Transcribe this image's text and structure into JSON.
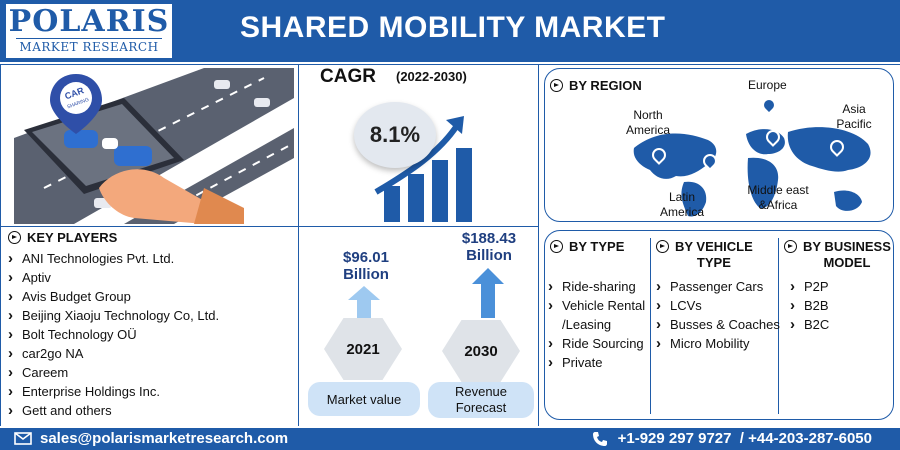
{
  "logo": {
    "main": "POLARIS",
    "sub": "MARKET RESEARCH"
  },
  "title": "SHARED MOBILITY MARKET",
  "hero": {
    "pin_text": "CAR SHARING"
  },
  "cagr": {
    "label": "CAGR",
    "period": "(2022-2030)",
    "value": "8.1%"
  },
  "key_players": {
    "heading": "KEY PLAYERS",
    "items": [
      "ANI Technologies Pvt. Ltd.",
      "Aptiv",
      "Avis Budget Group",
      "Beijing Xiaoju Technology Co, Ltd.",
      "Bolt Technology OÜ",
      "car2go NA",
      "Careem",
      "Enterprise Holdings Inc.",
      "Gett and others"
    ]
  },
  "market": {
    "y2021": {
      "value": "$96.01",
      "unit": "Billion",
      "year": "2021",
      "caption": "Market value"
    },
    "y2030": {
      "value": "$188.43",
      "unit": "Billion",
      "year": "2030",
      "caption1": "Revenue",
      "caption2": "Forecast"
    }
  },
  "region": {
    "heading": "BY REGION",
    "labels": {
      "north_america_1": "North",
      "north_america_2": "America",
      "europe": "Europe",
      "asia_1": "Asia",
      "asia_2": "Pacific",
      "latin_1": "Latin",
      "latin_2": "America",
      "mea_1": "Middle east",
      "mea_2": "&Africa"
    }
  },
  "by_type": {
    "heading": "BY TYPE",
    "items": [
      "Ride-sharing",
      "Vehicle Rental",
      "/Leasing",
      "Ride Sourcing",
      "Private"
    ]
  },
  "by_vehicle": {
    "heading1": "BY VEHICLE",
    "heading2": "TYPE",
    "items": [
      "Passenger Cars",
      "LCVs",
      "Busses & Coaches",
      "Micro Mobility"
    ]
  },
  "by_business": {
    "heading1": "BY BUSINESS",
    "heading2": "MODEL",
    "items": [
      "P2P",
      "B2B",
      "B2C"
    ]
  },
  "footer": {
    "email": "sales@polarismarketresearch.com",
    "phone": "+1-929 297 9727  / +44-203-287-6050"
  },
  "colors": {
    "brand": "#1f5ba8",
    "light_blue": "#cfe3f7",
    "arrow_blue": "#4a90d9"
  }
}
